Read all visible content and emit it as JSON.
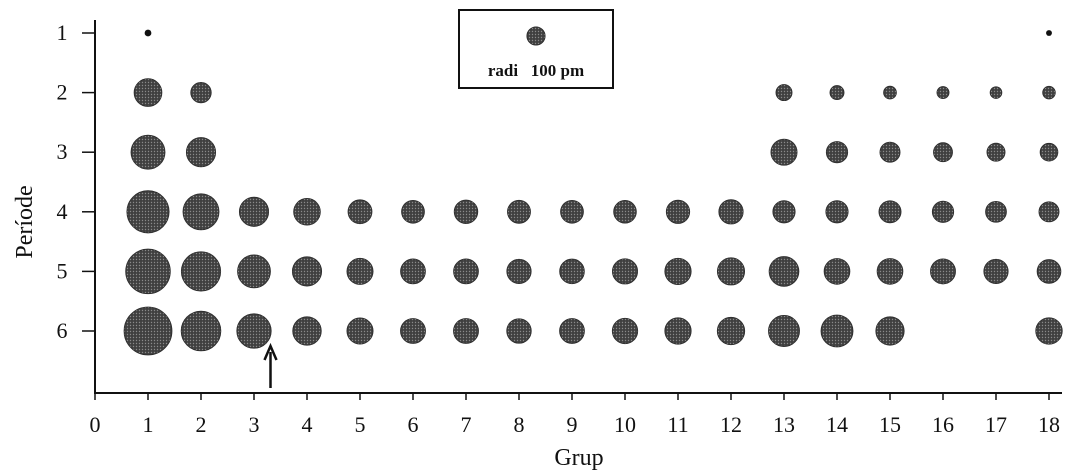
{
  "chart_data": {
    "type": "scatter",
    "xlabel": "Grup",
    "ylabel": "Període",
    "xticks": [
      "0",
      "1",
      "2",
      "3",
      "4",
      "5",
      "6",
      "7",
      "8",
      "9",
      "10",
      "11",
      "12",
      "13",
      "14",
      "15",
      "16",
      "17",
      "18"
    ],
    "yticks": [
      "1",
      "2",
      "3",
      "4",
      "5",
      "6"
    ],
    "xlim": [
      0,
      18
    ],
    "ylim": [
      0,
      7
    ],
    "y_reversed": true,
    "grid": false,
    "legend": {
      "label": "radi   100 pm",
      "radius_pm": 100,
      "placement": "top-center"
    },
    "annotation": {
      "type": "arrow",
      "x": 3.5,
      "y": 6,
      "direction": "up"
    },
    "marker_color": "#4a4a4a",
    "size_encoding": "atomic radius (pm)",
    "series": [
      {
        "period": 1,
        "groups": [
          1,
          18
        ],
        "radius_pm": [
          37,
          32
        ]
      },
      {
        "period": 2,
        "groups": [
          1,
          2,
          13,
          14,
          15,
          16,
          17,
          18
        ],
        "radius_pm": [
          152,
          112,
          88,
          77,
          70,
          66,
          64,
          69
        ]
      },
      {
        "period": 3,
        "groups": [
          1,
          2,
          13,
          14,
          15,
          16,
          17,
          18
        ],
        "radius_pm": [
          186,
          160,
          143,
          117,
          110,
          104,
          99,
          97
        ]
      },
      {
        "period": 4,
        "groups": [
          1,
          2,
          3,
          4,
          5,
          6,
          7,
          8,
          9,
          10,
          11,
          12,
          13,
          14,
          15,
          16,
          17,
          18
        ],
        "radius_pm": [
          231,
          197,
          160,
          146,
          131,
          125,
          129,
          126,
          125,
          124,
          128,
          133,
          122,
          122,
          121,
          117,
          114,
          110
        ]
      },
      {
        "period": 5,
        "groups": [
          1,
          2,
          3,
          4,
          5,
          6,
          7,
          8,
          9,
          10,
          11,
          12,
          13,
          14,
          15,
          16,
          17,
          18
        ],
        "radius_pm": [
          244,
          215,
          180,
          160,
          143,
          136,
          136,
          133,
          135,
          138,
          144,
          149,
          163,
          141,
          141,
          137,
          133,
          130
        ]
      },
      {
        "period": 6,
        "groups": [
          1,
          2,
          3,
          4,
          5,
          6,
          7,
          8,
          9,
          10,
          11,
          12,
          13,
          14,
          15,
          18
        ],
        "radius_pm": [
          262,
          217,
          188,
          156,
          143,
          137,
          137,
          134,
          136,
          139,
          144,
          150,
          170,
          175,
          155,
          145
        ]
      }
    ]
  }
}
